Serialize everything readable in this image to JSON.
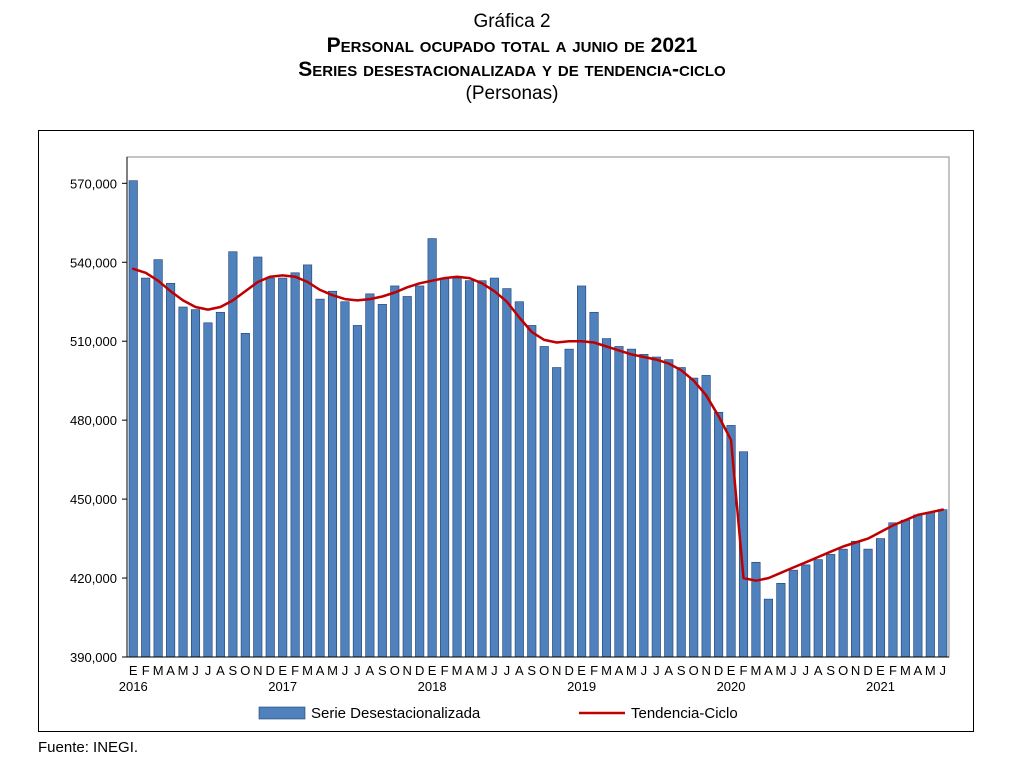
{
  "header": {
    "label": "Gráfica 2",
    "title": "Personal ocupado total a junio de 2021",
    "subtitle": "Series desestacionalizada y de tendencia-ciclo",
    "units": "(Personas)"
  },
  "footer": {
    "source": "Fuente: INEGI."
  },
  "chart_data": {
    "type": "bar",
    "title": "Personal ocupado total a junio de 2021",
    "subtitle": "Series desestacionalizada y de tendencia-ciclo",
    "ylabel": "(Personas)",
    "ylim": [
      390000,
      580000
    ],
    "yticks": [
      390000,
      420000,
      450000,
      480000,
      510000,
      540000,
      570000
    ],
    "ytick_labels": [
      "390,000",
      "420,000",
      "450,000",
      "480,000",
      "510,000",
      "540,000",
      "570,000"
    ],
    "month_labels": [
      "E",
      "F",
      "M",
      "A",
      "M",
      "J",
      "J",
      "A",
      "S",
      "O",
      "N",
      "D"
    ],
    "year_labels": [
      "2016",
      "2017",
      "2018",
      "2019",
      "2020",
      "2021"
    ],
    "grid": false,
    "legend_position": "bottom",
    "colors": {
      "bars": "#4f81bd",
      "bar_edge": "#1f3f73",
      "trend": "#c00000"
    },
    "categories": [
      "2016-01",
      "2016-02",
      "2016-03",
      "2016-04",
      "2016-05",
      "2016-06",
      "2016-07",
      "2016-08",
      "2016-09",
      "2016-10",
      "2016-11",
      "2016-12",
      "2017-01",
      "2017-02",
      "2017-03",
      "2017-04",
      "2017-05",
      "2017-06",
      "2017-07",
      "2017-08",
      "2017-09",
      "2017-10",
      "2017-11",
      "2017-12",
      "2018-01",
      "2018-02",
      "2018-03",
      "2018-04",
      "2018-05",
      "2018-06",
      "2018-07",
      "2018-08",
      "2018-09",
      "2018-10",
      "2018-11",
      "2018-12",
      "2019-01",
      "2019-02",
      "2019-03",
      "2019-04",
      "2019-05",
      "2019-06",
      "2019-07",
      "2019-08",
      "2019-09",
      "2019-10",
      "2019-11",
      "2019-12",
      "2020-01",
      "2020-02",
      "2020-03",
      "2020-04",
      "2020-05",
      "2020-06",
      "2020-07",
      "2020-08",
      "2020-09",
      "2020-10",
      "2020-11",
      "2020-12",
      "2021-01",
      "2021-02",
      "2021-03",
      "2021-04",
      "2021-05",
      "2021-06"
    ],
    "series": [
      {
        "name": "Serie Desestacionalizada",
        "type": "bar",
        "values": [
          571000,
          534000,
          541000,
          532000,
          523000,
          522000,
          517000,
          521000,
          544000,
          513000,
          542000,
          534000,
          534000,
          536000,
          539000,
          526000,
          529000,
          525000,
          516000,
          528000,
          524000,
          531000,
          527000,
          531000,
          549000,
          534000,
          534000,
          533000,
          533000,
          534000,
          530000,
          525000,
          516000,
          508000,
          500000,
          507000,
          531000,
          521000,
          511000,
          508000,
          507000,
          505000,
          504000,
          503000,
          500000,
          496000,
          497000,
          483000,
          478000,
          468000,
          426000,
          412000,
          418000,
          423000,
          425000,
          427000,
          429000,
          431000,
          434000,
          431000,
          435000,
          441000,
          442000,
          444000,
          445000,
          446000
        ]
      },
      {
        "name": "Tendencia-Ciclo",
        "type": "line",
        "values": [
          537500,
          536000,
          533000,
          529000,
          525500,
          523000,
          522000,
          523000,
          525500,
          529000,
          532500,
          534500,
          535000,
          534500,
          532500,
          529500,
          527500,
          526000,
          525500,
          526000,
          527000,
          528500,
          530500,
          532000,
          533000,
          534000,
          534500,
          534000,
          532000,
          529000,
          525000,
          519000,
          513500,
          510500,
          509500,
          510000,
          510000,
          509500,
          508000,
          506500,
          505000,
          504000,
          503000,
          501500,
          499000,
          495000,
          489500,
          481500,
          472500,
          420000,
          419000,
          420000,
          422000,
          424000,
          426000,
          428000,
          430000,
          432000,
          433500,
          435000,
          437500,
          440000,
          442000,
          444000,
          445000,
          446000
        ]
      }
    ]
  }
}
